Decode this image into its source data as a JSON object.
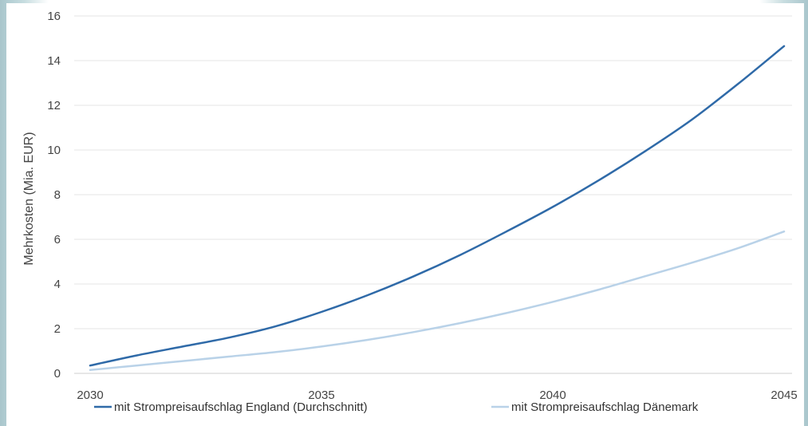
{
  "chart_data": {
    "type": "line",
    "title": "",
    "xlabel": "",
    "ylabel": "Mehrkosten (Mia. EUR)",
    "xlim": [
      2030,
      2045
    ],
    "ylim": [
      0,
      16
    ],
    "x_ticks": [
      "2030",
      "2035",
      "2040",
      "2045"
    ],
    "y_ticks": [
      "0",
      "2",
      "4",
      "6",
      "8",
      "10",
      "12",
      "14",
      "16"
    ],
    "grid": "horizontal",
    "legend": "bottom",
    "x": [
      2030,
      2031,
      2032,
      2033,
      2034,
      2035,
      2036,
      2037,
      2038,
      2039,
      2040,
      2041,
      2042,
      2043,
      2044,
      2045
    ],
    "series": [
      {
        "name": "mit Strompreisaufschlag England (Durchschnitt)",
        "color": "#2f6aa8",
        "values": [
          0.35,
          0.8,
          1.2,
          1.6,
          2.1,
          2.75,
          3.5,
          4.35,
          5.3,
          6.35,
          7.45,
          8.65,
          9.95,
          11.35,
          12.95,
          14.65
        ]
      },
      {
        "name": "mit Strompreisaufschlag Dänemark",
        "color": "#b9d2e8",
        "values": [
          0.15,
          0.35,
          0.55,
          0.75,
          0.95,
          1.2,
          1.5,
          1.85,
          2.25,
          2.7,
          3.2,
          3.75,
          4.35,
          4.95,
          5.6,
          6.35
        ]
      }
    ]
  }
}
